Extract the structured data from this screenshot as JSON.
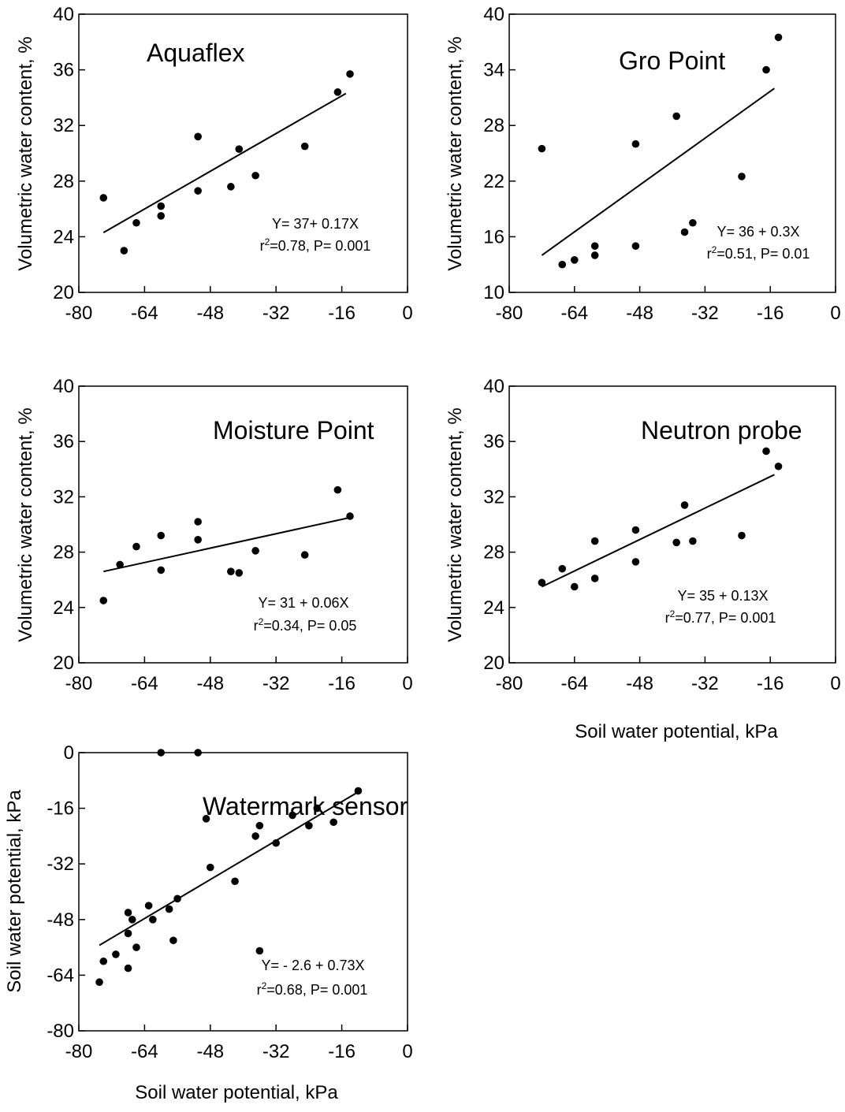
{
  "chart_data": [
    {
      "type": "scatter",
      "title": "Aquaflex",
      "xlabel": "",
      "ylabel": "Volumetric water content, %",
      "xlim": [
        -80,
        0
      ],
      "ylim": [
        20,
        40
      ],
      "xticks": [
        -80,
        -64,
        -48,
        -32,
        -16,
        0
      ],
      "yticks": [
        20,
        24,
        28,
        32,
        36,
        40
      ],
      "x": [
        -74,
        -69,
        -66,
        -60,
        -60,
        -51,
        -51,
        -43,
        -41,
        -37,
        -25,
        -17,
        -14
      ],
      "y": [
        26.8,
        23.0,
        25.0,
        26.2,
        25.5,
        27.3,
        31.2,
        27.6,
        30.3,
        28.4,
        30.5,
        34.4,
        35.7
      ],
      "fit": {
        "x": [
          -74,
          -15
        ],
        "y": [
          24.3,
          34.3
        ]
      },
      "annotation": {
        "equation": "Y= 37+ 0.17X",
        "r2": "=0.78, P= 0.001"
      }
    },
    {
      "type": "scatter",
      "title": "Gro Point",
      "xlabel": "",
      "ylabel": "Volumetric water content, %",
      "xlim": [
        -80,
        0
      ],
      "ylim": [
        10,
        40
      ],
      "xticks": [
        -80,
        -64,
        -48,
        -32,
        -16,
        0
      ],
      "yticks": [
        10,
        16,
        22,
        28,
        34,
        40
      ],
      "x": [
        -72,
        -67,
        -64,
        -59,
        -59,
        -49,
        -49,
        -39,
        -37,
        -35,
        -23,
        -17,
        -14
      ],
      "y": [
        25.5,
        13.0,
        13.5,
        15.0,
        14.0,
        26.0,
        15.0,
        29.0,
        16.5,
        17.5,
        22.5,
        34.0,
        37.5
      ],
      "fit": {
        "x": [
          -72,
          -15
        ],
        "y": [
          14.0,
          32.0
        ]
      },
      "annotation": {
        "equation": "Y= 36 + 0.3X",
        "r2": "=0.51, P= 0.01"
      }
    },
    {
      "type": "scatter",
      "title": "Moisture Point",
      "xlabel": "",
      "ylabel": "Volumetric water content, %",
      "xlim": [
        -80,
        0
      ],
      "ylim": [
        20,
        40
      ],
      "xticks": [
        -80,
        -64,
        -48,
        -32,
        -16,
        0
      ],
      "yticks": [
        20,
        24,
        28,
        32,
        36,
        40
      ],
      "x": [
        -74,
        -70,
        -66,
        -60,
        -60,
        -51,
        -51,
        -43,
        -41,
        -37,
        -25,
        -17,
        -14
      ],
      "y": [
        24.5,
        27.1,
        28.4,
        29.2,
        26.7,
        30.2,
        28.9,
        26.6,
        26.5,
        28.1,
        27.8,
        32.5,
        30.6
      ],
      "fit": {
        "x": [
          -74,
          -14
        ],
        "y": [
          26.6,
          30.5
        ]
      },
      "annotation": {
        "equation": "Y= 31 + 0.06X",
        "r2": "=0.34, P= 0.05"
      }
    },
    {
      "type": "scatter",
      "title": "Neutron probe",
      "xlabel": "Soil water potential, kPa",
      "ylabel": "Volumetric water content, %",
      "xlim": [
        -80,
        0
      ],
      "ylim": [
        20,
        40
      ],
      "xticks": [
        -80,
        -64,
        -48,
        -32,
        -16,
        0
      ],
      "yticks": [
        20,
        24,
        28,
        32,
        36,
        40
      ],
      "x": [
        -72,
        -67,
        -64,
        -59,
        -59,
        -49,
        -49,
        -39,
        -37,
        -35,
        -23,
        -17,
        -14
      ],
      "y": [
        25.8,
        26.8,
        25.5,
        26.1,
        28.8,
        29.6,
        27.3,
        28.7,
        31.4,
        28.8,
        29.2,
        35.3,
        34.2
      ],
      "fit": {
        "x": [
          -72,
          -15
        ],
        "y": [
          25.5,
          33.6
        ]
      },
      "annotation": {
        "equation": "Y= 35 + 0.13X",
        "r2": "=0.77, P= 0.001"
      }
    },
    {
      "type": "scatter",
      "title": "Watermark sensor",
      "xlabel": "Soil water potential, kPa",
      "ylabel": "Soil water potential, kPa",
      "xlim": [
        -80,
        0
      ],
      "ylim": [
        -80,
        0
      ],
      "xticks": [
        -80,
        -64,
        -48,
        -32,
        -16,
        0
      ],
      "yticks": [
        -80,
        -64,
        -48,
        -32,
        -16,
        0
      ],
      "x": [
        -75,
        -74,
        -71,
        -68,
        -68,
        -68,
        -67,
        -66,
        -63,
        -62,
        -60,
        -58,
        -57,
        -56,
        -51,
        -49,
        -48,
        -42,
        -37,
        -36,
        -36,
        -32,
        -28,
        -24,
        -22,
        -18,
        -12
      ],
      "y": [
        -66,
        -60,
        -58,
        -62,
        -52,
        -46,
        -48,
        -56,
        -44,
        -48,
        0,
        -45,
        -54,
        -42,
        0,
        -19,
        -33,
        -37,
        -24,
        -21,
        -57,
        -26,
        -18,
        -21,
        -16,
        -20,
        -11
      ],
      "fit": {
        "x": [
          -75,
          -12
        ],
        "y": [
          -55.4,
          -11.3
        ]
      },
      "annotation": {
        "equation": "Y= - 2.6 + 0.73X",
        "r2": "=0.68, P= 0.001"
      }
    }
  ]
}
